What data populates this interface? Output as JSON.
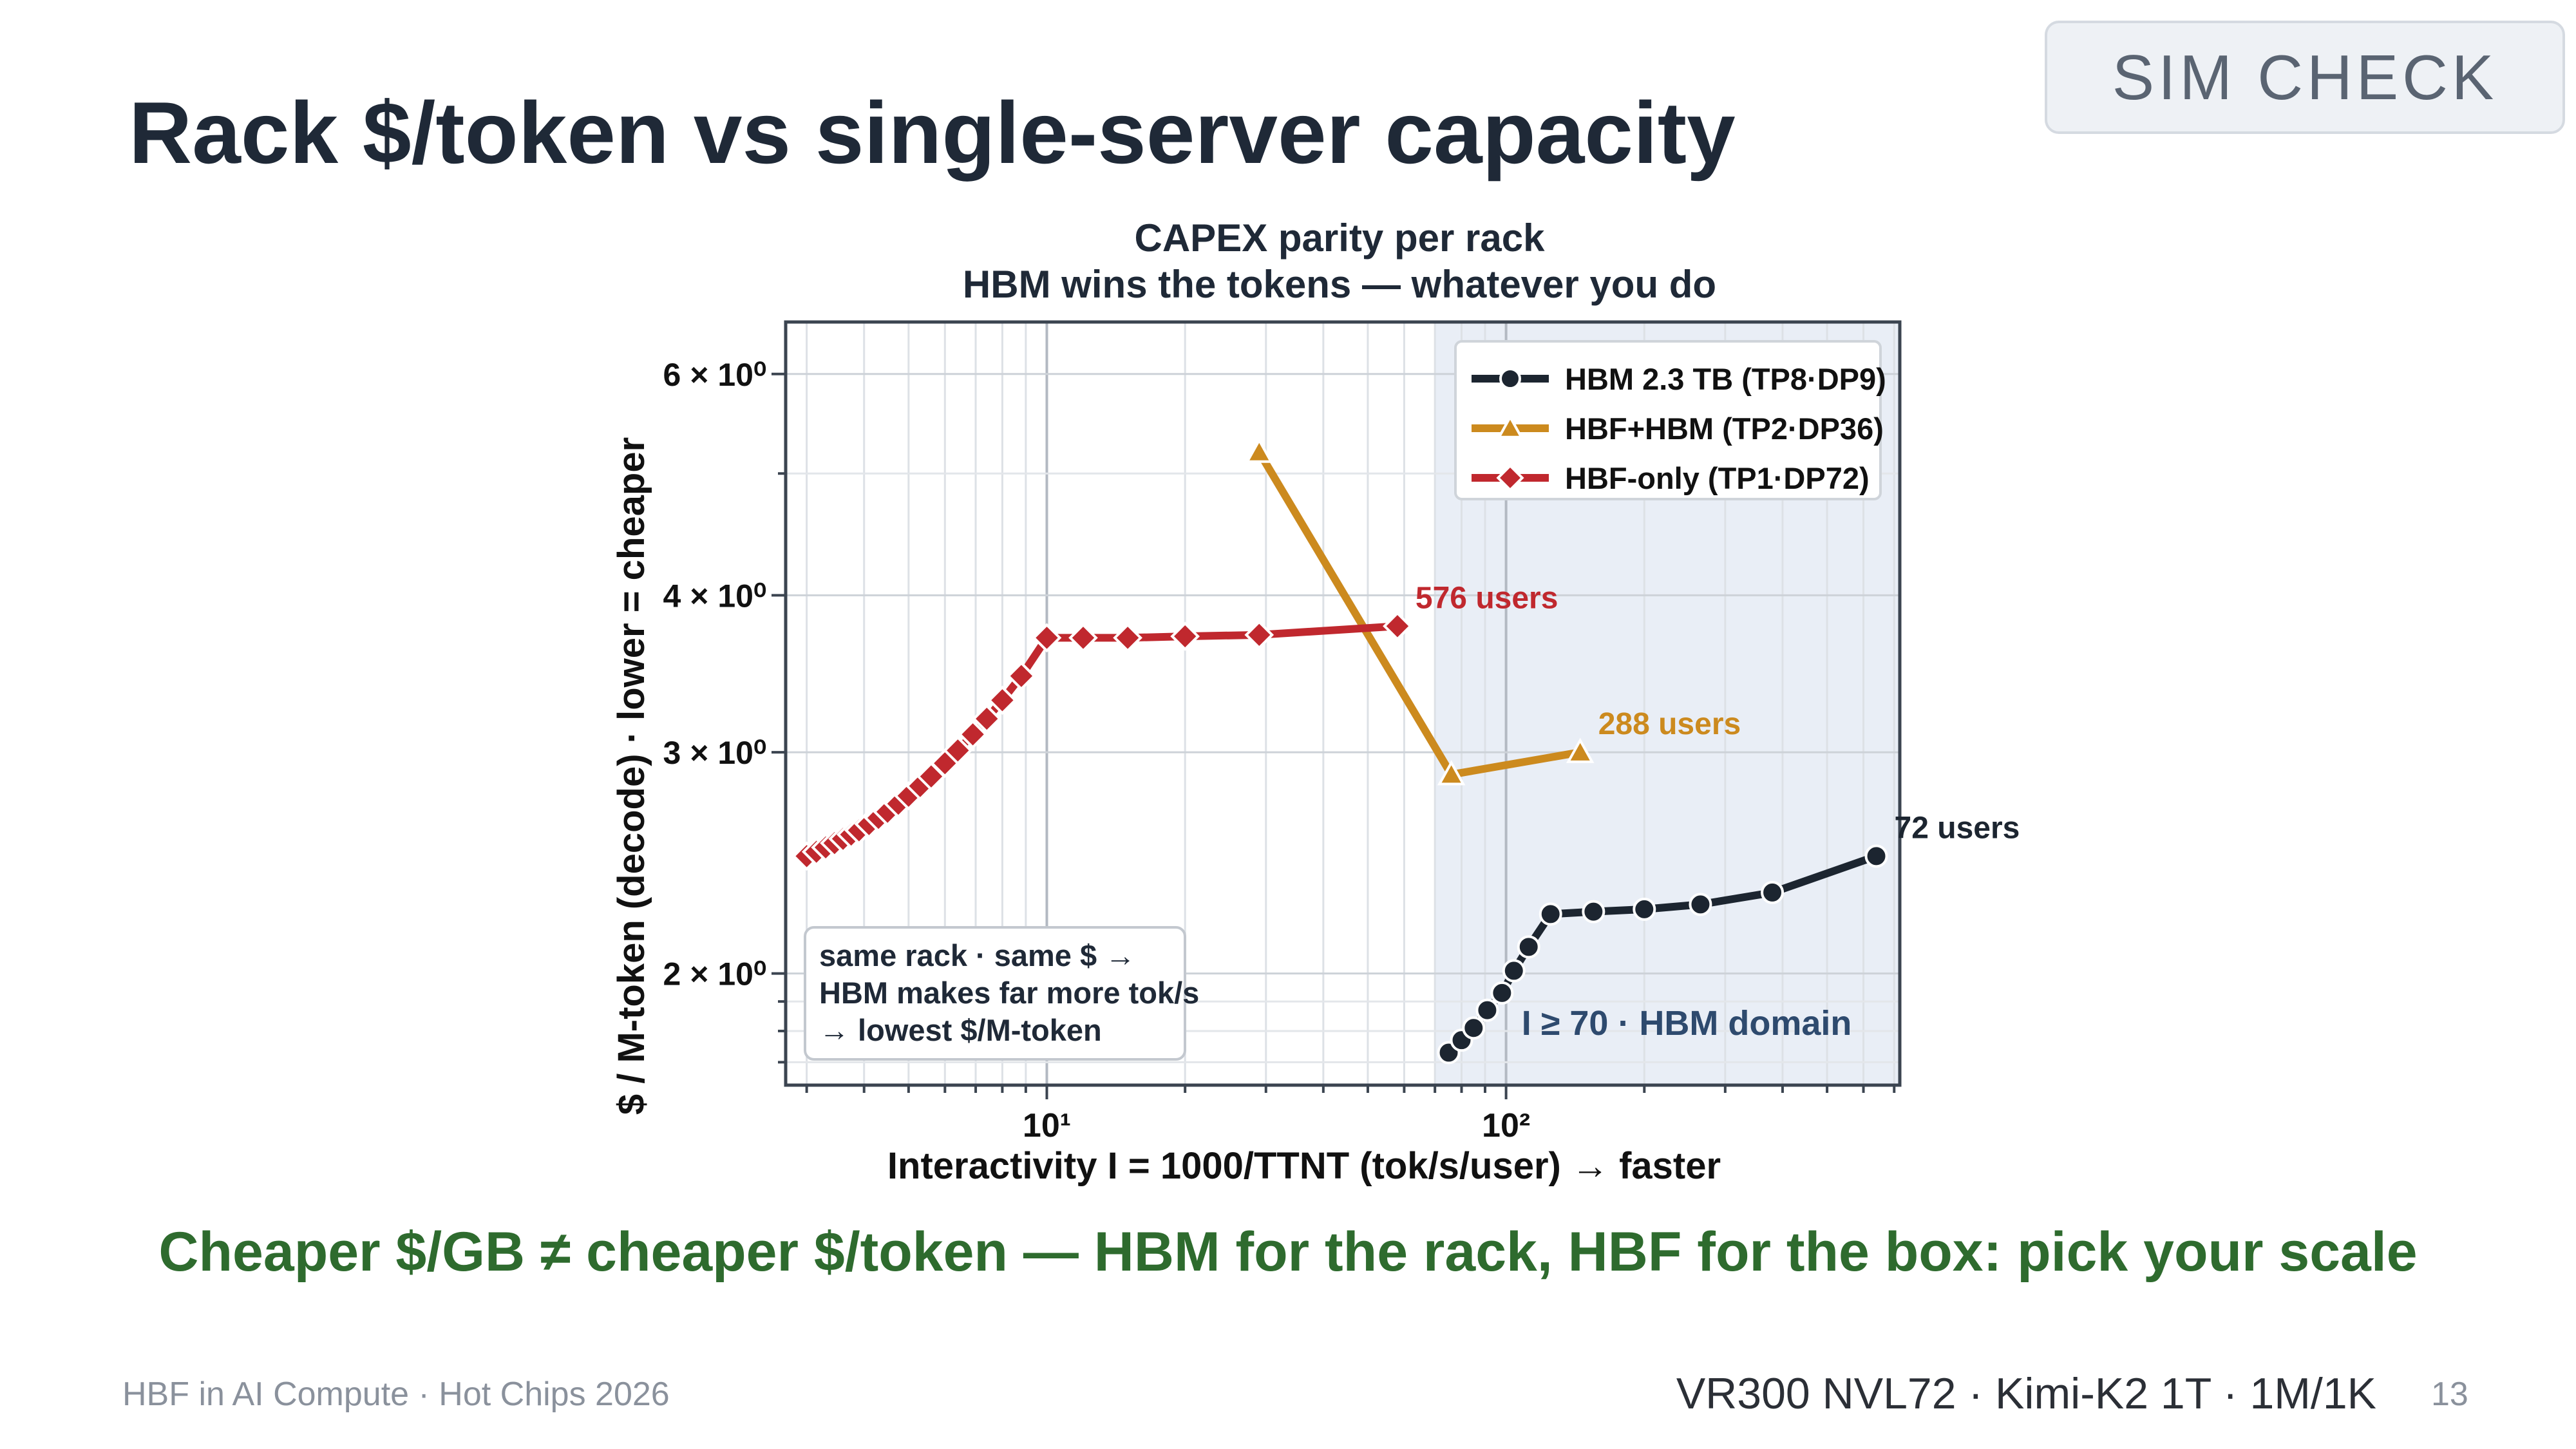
{
  "slide": {
    "title": "Rack $/token  vs  single-server capacity",
    "badge": "SIM CHECK",
    "takeaway": "Cheaper $/GB ≠ cheaper $/token — HBM for the rack, HBF for the box: pick your scale",
    "footer_left": "HBF in AI Compute · Hot Chips 2026",
    "footer_right": "VR300 NVL72 · Kimi-K2 1T · 1M/1K",
    "page_number": "13"
  },
  "chart_data": {
    "type": "line",
    "title": "CAPEX parity per rack",
    "subtitle": "HBM wins the tokens — whatever you do",
    "xlabel": "Interactivity  I = 1000/TTNT  (tok/s/user)  → faster",
    "ylabel": "$ / M-token (decode)   ·   lower = cheaper",
    "xscale": "log",
    "yscale": "log",
    "xlim": [
      2.7,
      720
    ],
    "ylim": [
      1.63,
      6.6
    ],
    "x_tick_labels": [
      {
        "value": 10,
        "label": "10¹"
      },
      {
        "value": 100,
        "label": "10²"
      }
    ],
    "y_tick_labels": [
      {
        "value": 2,
        "label": "2 × 10⁰"
      },
      {
        "value": 3,
        "label": "3 × 10⁰"
      },
      {
        "value": 4,
        "label": "4 × 10⁰"
      },
      {
        "value": 6,
        "label": "6 × 10⁰"
      }
    ],
    "grid": true,
    "legend_position": "top-right",
    "shaded_region": {
      "x_from": 70,
      "label": "I ≥ 70  ·  HBM domain",
      "color": "#e9eef6"
    },
    "series": [
      {
        "name": "HBM 2.3 TB (TP8·DP9)",
        "color": "#1c2530",
        "marker": "circle",
        "x": [
          75,
          80,
          85,
          91,
          98,
          104,
          112,
          125,
          155,
          200,
          265,
          380,
          640
        ],
        "y": [
          1.73,
          1.77,
          1.81,
          1.87,
          1.93,
          2.01,
          2.1,
          2.23,
          2.24,
          2.25,
          2.27,
          2.32,
          2.48
        ],
        "end_label": "72 users",
        "end_label_color": "#1c2530"
      },
      {
        "name": "HBF+HBM (TP2·DP36)",
        "color": "#cc8a1e",
        "marker": "triangle",
        "x": [
          29,
          76,
          145
        ],
        "y": [
          5.2,
          2.88,
          3.0
        ],
        "end_label": "288 users",
        "end_label_color": "#cc8a1e"
      },
      {
        "name": "HBF-only (TP1·DP72)",
        "color": "#c0282e",
        "marker": "diamond",
        "x": [
          3.0,
          3.15,
          3.3,
          3.45,
          3.6,
          3.75,
          3.9,
          4.1,
          4.3,
          4.5,
          4.75,
          5.0,
          5.3,
          5.6,
          6.0,
          6.4,
          6.9,
          7.4,
          8.0,
          8.8,
          10,
          12,
          15,
          20,
          29,
          58
        ],
        "y": [
          2.48,
          2.5,
          2.52,
          2.54,
          2.56,
          2.58,
          2.6,
          2.63,
          2.66,
          2.69,
          2.73,
          2.77,
          2.82,
          2.87,
          2.94,
          3.01,
          3.1,
          3.19,
          3.3,
          3.45,
          3.7,
          3.7,
          3.7,
          3.71,
          3.72,
          3.78
        ],
        "end_label": "576 users",
        "end_label_color": "#c0282e"
      }
    ],
    "annotation_box": [
      "same rack · same $ →",
      "HBM makes far more tok/s",
      "→ lowest $/M-token"
    ]
  }
}
